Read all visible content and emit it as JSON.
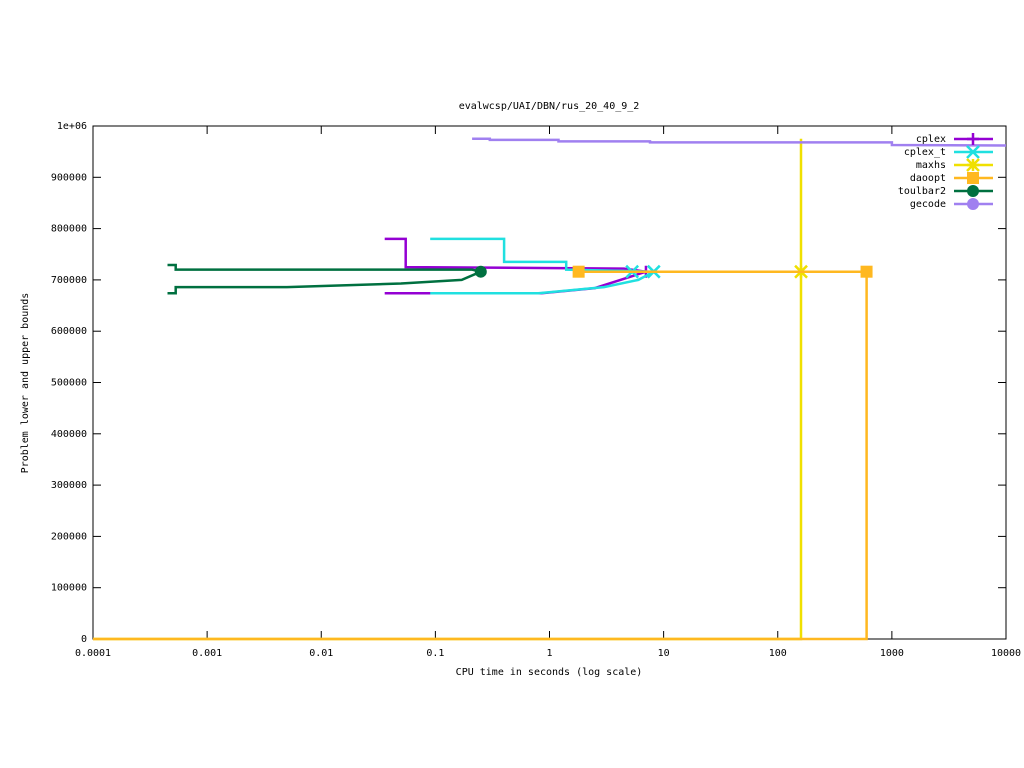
{
  "chart_data": {
    "type": "line",
    "title": "evalwcsp/UAI/DBN/rus_20_40_9_2",
    "x_label": "CPU time in seconds (log scale)",
    "y_label": "Problem lower and upper bounds",
    "xlog": true,
    "grid": false,
    "legend": "upper right",
    "xlim": [
      0.0001,
      10000
    ],
    "ylim": [
      0,
      1000000
    ],
    "xticks": [
      0.0001,
      0.001,
      0.01,
      0.1,
      1,
      10,
      100,
      1000,
      10000
    ],
    "yticks": [
      0,
      100000,
      200000,
      300000,
      400000,
      500000,
      600000,
      700000,
      800000,
      900000,
      {
        "value": 1000000,
        "label": "1e+06"
      }
    ],
    "series": [
      {
        "name": "cplex",
        "color": "#9400d3",
        "marker": "plus",
        "x": [
          0.036,
          0.055,
          0.055,
          4.5,
          7
        ],
        "values": [
          780000,
          780000,
          725000,
          722000,
          716000
        ],
        "lower_x": [
          0.036,
          0.09,
          0.85,
          2.5,
          7
        ],
        "lower_values": [
          674000,
          674000,
          674000,
          684000,
          716000
        ],
        "point_x": [
          7
        ],
        "point_values": [
          716000
        ]
      },
      {
        "name": "cplex_t",
        "color": "#20e0e0",
        "marker": "cross",
        "x": [
          0.09,
          0.4,
          0.4,
          1.4,
          1.4,
          8.2
        ],
        "values": [
          780000,
          780000,
          735000,
          735000,
          720000,
          716000
        ],
        "lower_x": [
          0.09,
          0.8,
          3,
          6,
          8.2
        ],
        "lower_values": [
          674000,
          674000,
          686000,
          700000,
          716000
        ],
        "point_x": [
          5.3,
          8.2
        ],
        "point_values": [
          716000,
          716000
        ]
      },
      {
        "name": "maxhs",
        "color": "#f0e000",
        "marker": "star",
        "x": [
          160,
          160
        ],
        "values": [
          975000,
          716000
        ],
        "lower_x": [
          0.0001,
          160,
          160
        ],
        "lower_values": [
          0,
          0,
          716000
        ],
        "point_x": [
          160
        ],
        "point_values": [
          716000
        ]
      },
      {
        "name": "daoopt",
        "color": "#ffb820",
        "marker": "square",
        "x": [
          1.8,
          600
        ],
        "values": [
          716000,
          716000
        ],
        "lower_x": [
          0.0001,
          600,
          600
        ],
        "lower_values": [
          0,
          0,
          716000
        ],
        "point_x": [
          1.8,
          600
        ],
        "point_values": [
          716000,
          716000
        ]
      },
      {
        "name": "toulbar2",
        "color": "#007040",
        "marker": "circle",
        "x": [
          0.00045,
          0.00053,
          0.00053,
          0.21,
          0.25
        ],
        "values": [
          729000,
          729000,
          720000,
          720000,
          716000
        ],
        "lower_x": [
          0.00045,
          0.00053,
          0.00053,
          0.005,
          0.05,
          0.17,
          0.25
        ],
        "lower_values": [
          674000,
          674000,
          686000,
          686000,
          693000,
          700000,
          716000
        ],
        "point_x": [
          0.25
        ],
        "point_values": [
          716000
        ]
      },
      {
        "name": "gecode",
        "color": "#a080f0",
        "marker": "circle",
        "x": [
          0.21,
          0.3,
          0.3,
          1.2,
          1.2,
          7.6,
          7.6,
          1000,
          1000,
          10000
        ],
        "values": [
          975000,
          975000,
          973000,
          973000,
          970000,
          970000,
          968000,
          968000,
          963000,
          962000
        ]
      }
    ]
  }
}
